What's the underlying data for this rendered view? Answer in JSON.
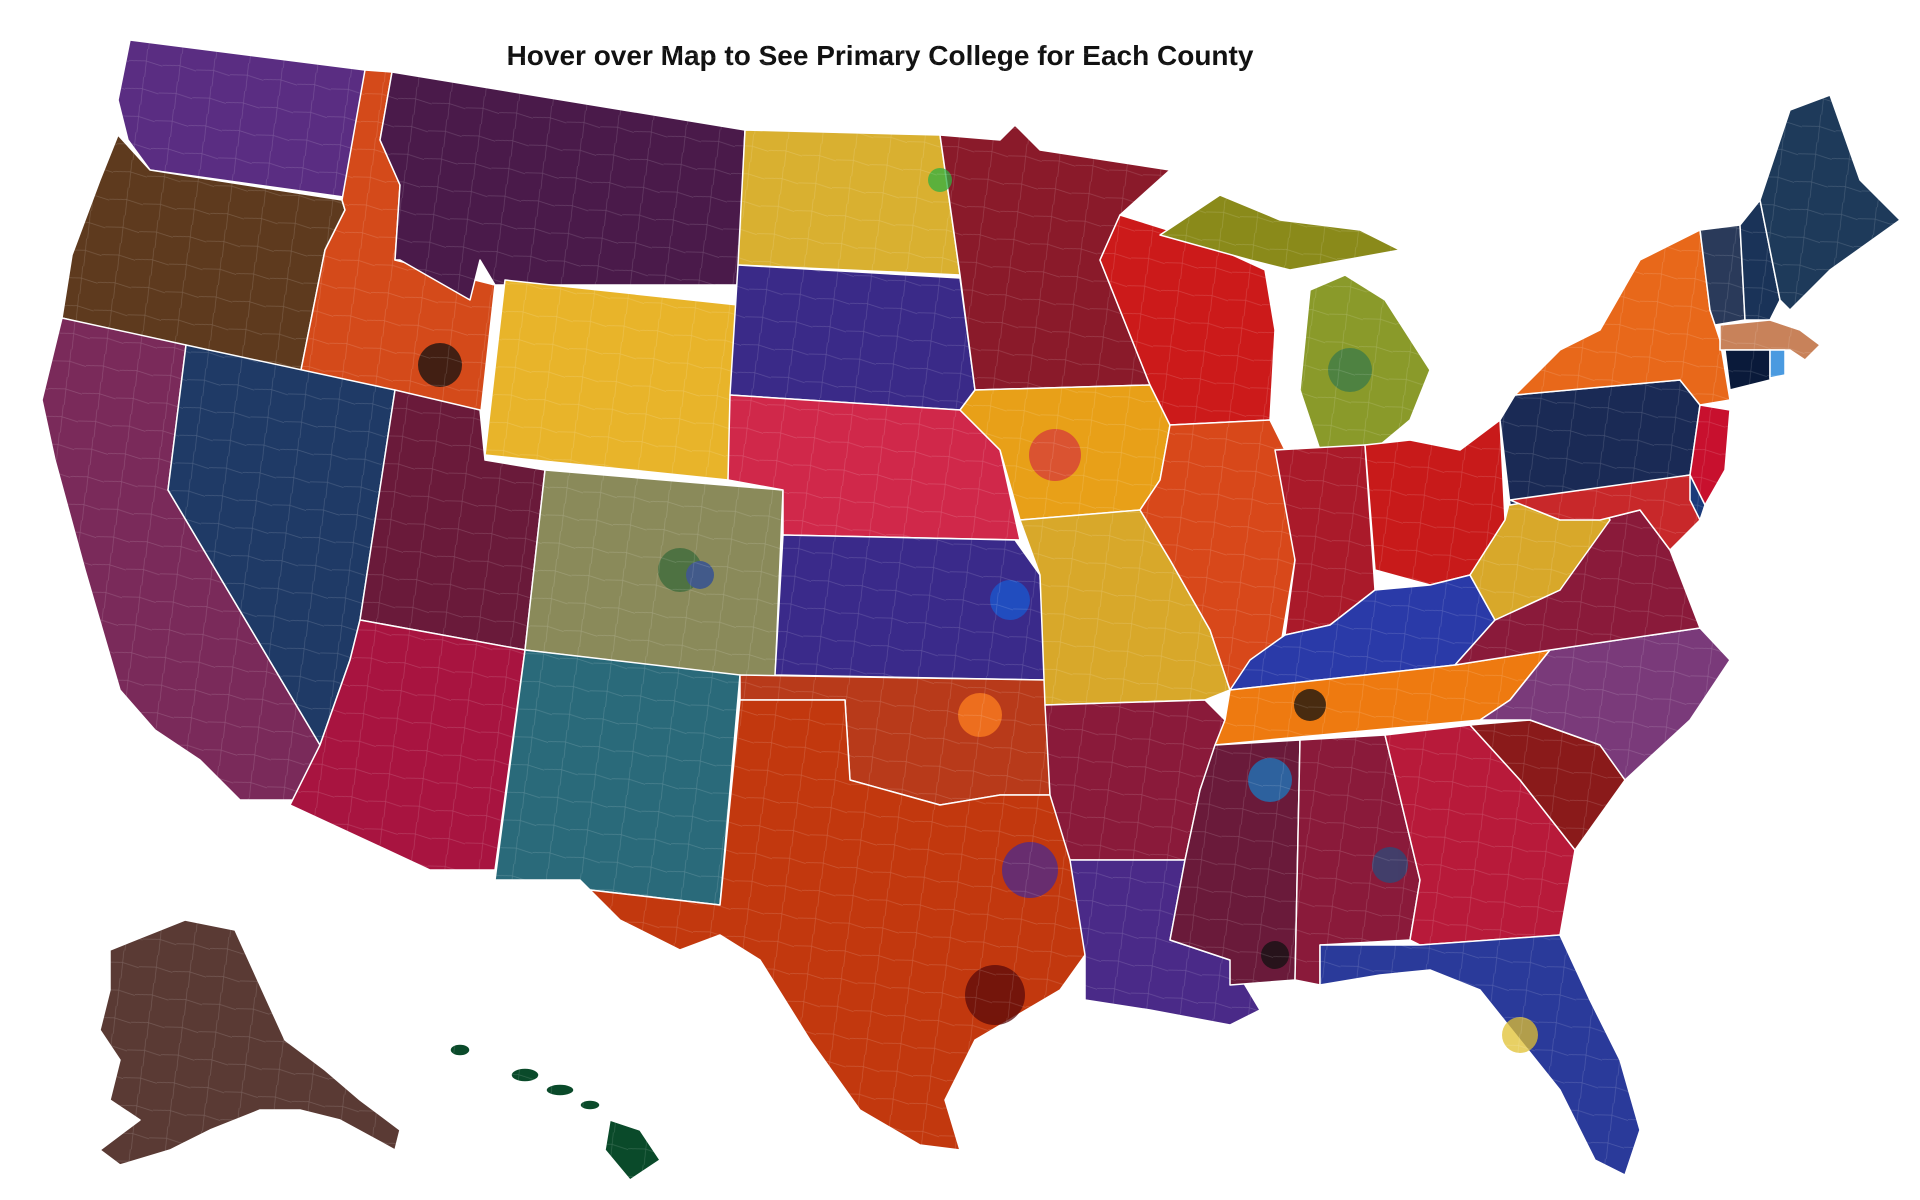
{
  "title": "Hover over Map to See Primary College for Each County",
  "colors": {
    "washington": "#5a2d82",
    "oregon": "#5e3a1e",
    "california": "#7a2a5a",
    "idaho": "#d44a1a",
    "montana": "#4a1a4a",
    "nevada": "#1f3a66",
    "utah": "#6a1a3a",
    "arizona": "#a81440",
    "wyoming": "#e8b42a",
    "colorado": "#8a8a5a",
    "new_mexico": "#2a6a7a",
    "north_dakota": "#d9b030",
    "south_dakota": "#3a2a88",
    "nebraska": "#d0284a",
    "kansas": "#3a2a8a",
    "oklahoma": "#b83a1a",
    "texas": "#c2380e",
    "minnesota": "#8a1a2a",
    "iowa": "#e8a018",
    "missouri": "#d8a82a",
    "arkansas": "#8a1a3a",
    "louisiana": "#4a2a88",
    "wisconsin": "#cc1a1a",
    "illinois": "#d8481a",
    "michigan_upper": "#8a8a1a",
    "michigan_lower": "#8a9a2a",
    "indiana": "#aa1a2a",
    "ohio": "#c81a1a",
    "kentucky": "#2a3aa8",
    "tennessee": "#ee7a10",
    "mississippi": "#6a1a3a",
    "alabama": "#8a1a3a",
    "georgia": "#b81a3a",
    "florida": "#2a3a9a",
    "south_carolina": "#8a1a1a",
    "north_carolina": "#7a3a7a",
    "virginia": "#8a1a3a",
    "west_virginia": "#d8a82a",
    "pennsylvania": "#1a2a55",
    "new_york": "#e8681a",
    "new_jersey": "#c8102e",
    "maryland": "#c8282a",
    "delaware": "#1a3a7a",
    "vermont": "#2a3a5a",
    "new_hampshire": "#1a3358",
    "maine": "#1e3a5a",
    "massachusetts": "#c8825a",
    "connecticut": "#0a1a3a",
    "rhode_island": "#4a9ae0",
    "alaska": "#5a3a34",
    "hawaii": "#0a4a2a",
    "border": "#ffffff"
  },
  "icons": {
    "map": "us-county-choropleth-map"
  }
}
